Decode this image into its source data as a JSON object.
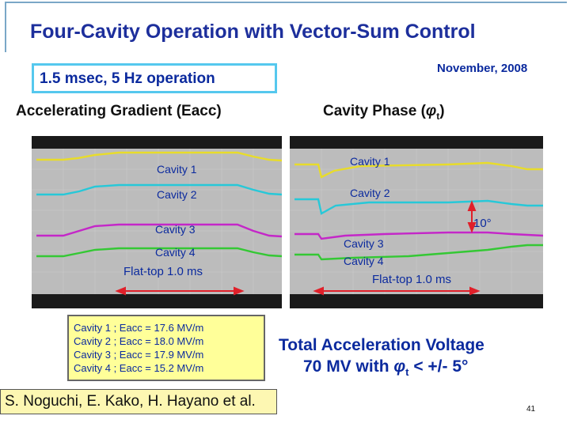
{
  "slide": {
    "title": "Four-Cavity Operation with Vector-Sum Control",
    "date": "November, 2008",
    "operation": "1.5 msec, 5 Hz operation",
    "left_heading": "Accelerating Gradient (Eacc)",
    "right_heading": "Cavity  Phase (",
    "phi_symbol": "φ",
    "phi_subscript": "t",
    "right_heading_close": ")",
    "cavity_labels": [
      "Cavity 1",
      "Cavity 2",
      "Cavity 3",
      "Cavity 4"
    ],
    "flat_top": "Flat-top 1.0 ms",
    "phase_scale": "10°",
    "eacc_lines": [
      "Cavity 1 ; Eacc = 17.6 MV/m",
      "Cavity 2 ; Eacc = 18.0 MV/m",
      "Cavity 3 ; Eacc = 17.9 MV/m",
      "Cavity 4 ; Eacc = 15.2 MV/m"
    ],
    "total_line1": "Total Acceleration Voltage",
    "total_line2_prefix": "70 MV  with ",
    "total_line2_suffix": " < +/- 5°",
    "authors": "S. Noguchi, E. Kako, H. Hayano et al.",
    "page_number": "41"
  },
  "colors": {
    "title": "#1d2f9c",
    "text_blue": "#0b2a9e",
    "accent_box": "#55c8ee",
    "cavity1": "#e8dc2a",
    "cavity2": "#27c8d8",
    "cavity3": "#c427c8",
    "cavity4": "#34c834",
    "flat_top_arrow": "#e0202a",
    "yellow_box": "#ffff99"
  }
}
